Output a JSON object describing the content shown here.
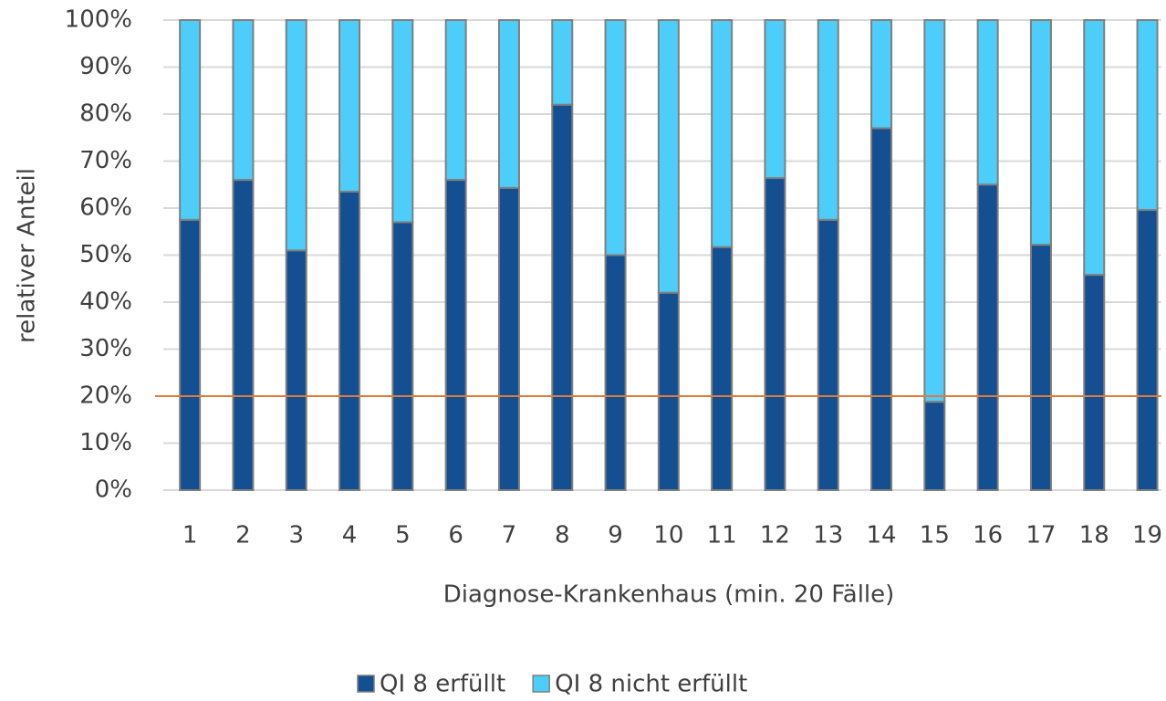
{
  "chart_data": {
    "type": "stacked_bar",
    "x_label": "Diagnose-Krankenhaus (min. 20 Fälle)",
    "y_label": "relativer Anteil",
    "categories": [
      "1",
      "2",
      "3",
      "4",
      "5",
      "6",
      "7",
      "8",
      "9",
      "10",
      "11",
      "12",
      "13",
      "14",
      "15",
      "16",
      "17",
      "18",
      "19"
    ],
    "series": [
      {
        "name": "QI 8 erfüllt",
        "color": "#134f91",
        "values": [
          57.5,
          66,
          51,
          63.5,
          57,
          66,
          64.3,
          82,
          50,
          42,
          51.7,
          66.4,
          57.5,
          77,
          18.8,
          65,
          52.2,
          45.8,
          59.6
        ]
      },
      {
        "name": "QI 8 nicht erfüllt",
        "color": "#4dcdf9",
        "values": [
          42.5,
          34,
          49,
          36.5,
          43,
          34,
          35.7,
          18,
          50,
          58,
          48.3,
          33.6,
          42.5,
          23,
          81.2,
          35,
          47.8,
          54.2,
          40.4
        ]
      }
    ],
    "threshold": 20,
    "threshold_color": "#e07b39",
    "ylim": [
      0,
      100
    ],
    "yticks": [
      {
        "value": 0,
        "label": "0%"
      },
      {
        "value": 10,
        "label": "10%"
      },
      {
        "value": 20,
        "label": "20%"
      },
      {
        "value": 30,
        "label": "30%"
      },
      {
        "value": 40,
        "label": "40%"
      },
      {
        "value": 50,
        "label": "50%"
      },
      {
        "value": 60,
        "label": "60%"
      },
      {
        "value": 70,
        "label": "70%"
      },
      {
        "value": 80,
        "label": "80%"
      },
      {
        "value": 90,
        "label": "90%"
      },
      {
        "value": 100,
        "label": "100%"
      }
    ],
    "grid": true,
    "legend": "bottom"
  }
}
